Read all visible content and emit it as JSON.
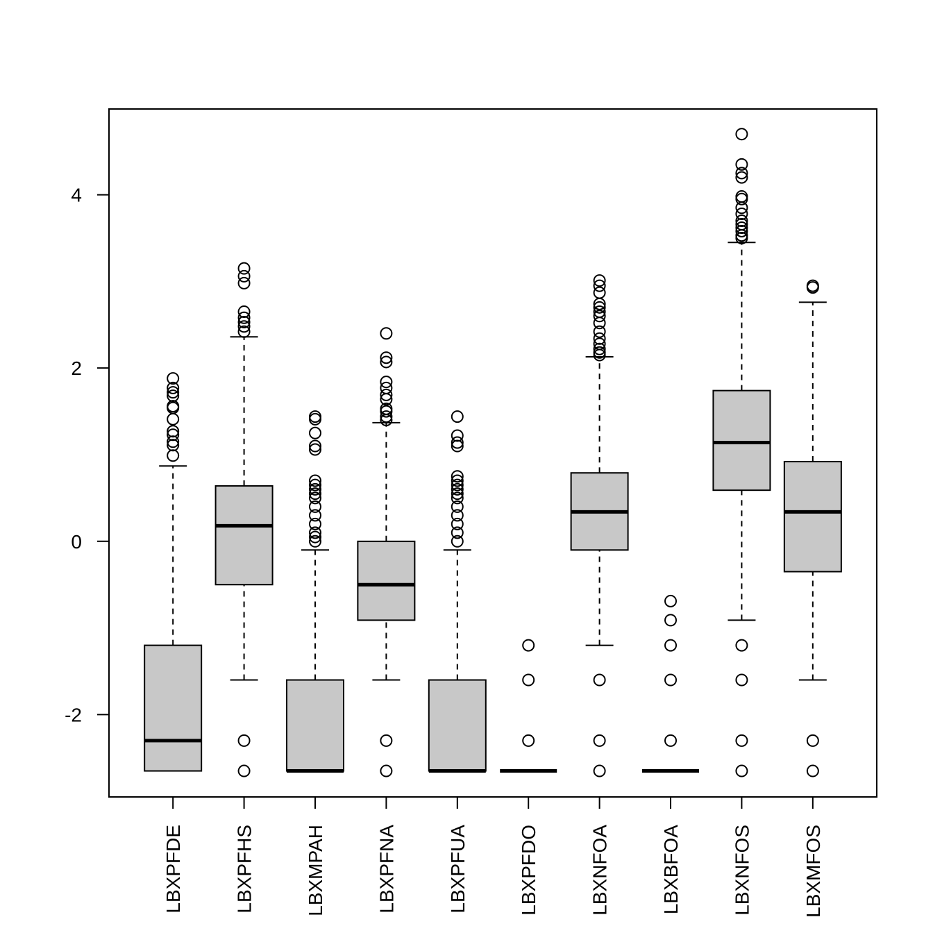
{
  "chart_data": {
    "type": "boxplot",
    "categories": [
      "LBXPFDE",
      "LBXPFHS",
      "LBXMPAH",
      "LBXPFNA",
      "LBXPFUA",
      "LBXPFDO",
      "LBXNFOA",
      "LBXBFOA",
      "LBXNFOS",
      "LBXMFOS"
    ],
    "color": "#c8c8c8",
    "ylim": [
      -2.95,
      4.99
    ],
    "yticks": [
      -2,
      0,
      2,
      4
    ],
    "boxes": [
      {
        "whisker_low": -2.65,
        "q1": -2.65,
        "median": -2.3,
        "q3": -1.2,
        "whisker_high": 0.87,
        "outliers": [
          0.99,
          1.11,
          1.15,
          1.23,
          1.27,
          1.41,
          1.54,
          1.56,
          1.68,
          1.72,
          1.77,
          1.88
        ]
      },
      {
        "whisker_low": -1.6,
        "q1": -0.5,
        "median": 0.18,
        "q3": 0.64,
        "whisker_high": 2.36,
        "outliers": [
          -2.65,
          -2.3,
          2.42,
          2.48,
          2.53,
          2.58,
          2.65,
          2.98,
          3.06,
          3.15
        ]
      },
      {
        "whisker_low": -2.65,
        "q1": -2.65,
        "median": -2.65,
        "q3": -1.6,
        "whisker_high": -0.1,
        "outliers": [
          0.0,
          0.05,
          0.1,
          0.2,
          0.3,
          0.4,
          0.5,
          0.55,
          0.6,
          0.65,
          0.7,
          1.06,
          1.1,
          1.25,
          1.41,
          1.44
        ]
      },
      {
        "whisker_low": -1.6,
        "q1": -0.91,
        "median": -0.5,
        "q3": 0.0,
        "whisker_high": 1.37,
        "outliers": [
          -2.65,
          -2.3,
          1.4,
          1.44,
          1.5,
          1.53,
          1.64,
          1.69,
          1.77,
          1.84,
          2.07,
          2.12,
          2.4
        ]
      },
      {
        "whisker_low": -2.65,
        "q1": -2.65,
        "median": -2.65,
        "q3": -1.6,
        "whisker_high": -0.1,
        "outliers": [
          0.0,
          0.1,
          0.2,
          0.3,
          0.4,
          0.5,
          0.55,
          0.6,
          0.65,
          0.7,
          0.75,
          1.1,
          1.14,
          1.22,
          1.44
        ]
      },
      {
        "whisker_low": -2.65,
        "q1": -2.65,
        "median": -2.65,
        "q3": -2.65,
        "whisker_high": -2.65,
        "outliers": [
          -2.3,
          -1.6,
          -1.2
        ]
      },
      {
        "whisker_low": -1.2,
        "q1": -0.1,
        "median": 0.34,
        "q3": 0.79,
        "whisker_high": 2.13,
        "outliers": [
          -2.65,
          -2.3,
          -1.6,
          2.15,
          2.18,
          2.22,
          2.28,
          2.34,
          2.42,
          2.52,
          2.6,
          2.65,
          2.7,
          2.74,
          2.87,
          2.95,
          3.01
        ]
      },
      {
        "whisker_low": -2.65,
        "q1": -2.65,
        "median": -2.65,
        "q3": -2.65,
        "whisker_high": -2.65,
        "outliers": [
          -2.3,
          -1.6,
          -1.2,
          -0.91,
          -0.69
        ]
      },
      {
        "whisker_low": -0.91,
        "q1": 0.59,
        "median": 1.14,
        "q3": 1.74,
        "whisker_high": 3.45,
        "outliers": [
          -2.65,
          -2.3,
          -1.6,
          -1.2,
          3.5,
          3.53,
          3.58,
          3.62,
          3.66,
          3.7,
          3.78,
          3.85,
          3.95,
          3.98,
          4.2,
          4.25,
          4.35,
          4.7
        ]
      },
      {
        "whisker_low": -1.6,
        "q1": -0.35,
        "median": 0.34,
        "q3": 0.92,
        "whisker_high": 2.76,
        "outliers": [
          -2.65,
          -2.3,
          2.93,
          2.95
        ]
      }
    ]
  }
}
